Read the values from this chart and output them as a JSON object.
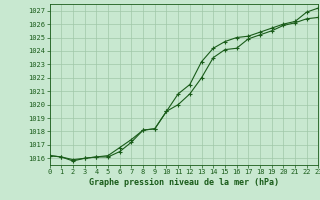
{
  "title": "Graphe pression niveau de la mer (hPa)",
  "bg_color": "#c8e8d0",
  "grid_color": "#a0c8a8",
  "line_color": "#1a5c1a",
  "x_min": 0,
  "x_max": 23,
  "y_min": 1015.5,
  "y_max": 1027.5,
  "y_ticks": [
    1016,
    1017,
    1018,
    1019,
    1020,
    1021,
    1022,
    1023,
    1024,
    1025,
    1026,
    1027
  ],
  "series1_x": [
    0,
    1,
    2,
    3,
    4,
    5,
    6,
    7,
    8,
    9,
    10,
    11,
    12,
    13,
    14,
    15,
    16,
    17,
    18,
    19,
    20,
    21,
    22,
    23
  ],
  "series1_y": [
    1016.2,
    1016.1,
    1015.8,
    1016.0,
    1016.1,
    1016.1,
    1016.5,
    1017.2,
    1018.1,
    1018.2,
    1019.5,
    1020.0,
    1020.8,
    1022.0,
    1023.5,
    1024.1,
    1024.2,
    1024.9,
    1025.2,
    1025.5,
    1025.9,
    1026.1,
    1026.4,
    1026.5
  ],
  "series2_x": [
    0,
    1,
    2,
    3,
    4,
    5,
    6,
    7,
    8,
    9,
    10,
    11,
    12,
    13,
    14,
    15,
    16,
    17,
    18,
    19,
    20,
    21,
    22,
    23
  ],
  "series2_y": [
    1016.2,
    1016.1,
    1015.9,
    1016.0,
    1016.1,
    1016.2,
    1016.8,
    1017.4,
    1018.1,
    1018.2,
    1019.5,
    1020.8,
    1021.5,
    1023.2,
    1024.2,
    1024.7,
    1025.0,
    1025.1,
    1025.4,
    1025.7,
    1026.0,
    1026.2,
    1026.9,
    1027.2
  ]
}
